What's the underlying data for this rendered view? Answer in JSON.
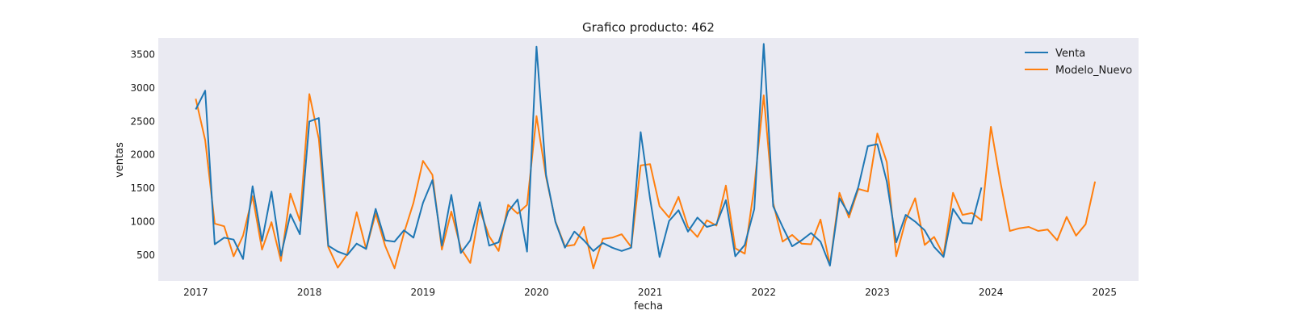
{
  "chart_data": {
    "type": "line",
    "title": "Grafico producto: 462",
    "xlabel": "fecha",
    "ylabel": "ventas",
    "xlim": [
      2016.67,
      2025.3
    ],
    "ylim": [
      110,
      3750
    ],
    "xticks": [
      2017,
      2018,
      2019,
      2020,
      2021,
      2022,
      2023,
      2024,
      2025
    ],
    "yticks": [
      500,
      1000,
      1500,
      2000,
      2500,
      3000,
      3500
    ],
    "grid": false,
    "background": "#eaeaf2",
    "legend_position": "top-right",
    "start_year": 2017,
    "step_months": 1,
    "series": [
      {
        "name": "Venta",
        "color": "#1f77b4",
        "values": [
          2680,
          2960,
          660,
          760,
          730,
          440,
          1530,
          710,
          1450,
          490,
          1110,
          810,
          2500,
          2550,
          640,
          550,
          500,
          670,
          590,
          1190,
          720,
          700,
          870,
          760,
          1280,
          1620,
          640,
          1400,
          530,
          720,
          1290,
          640,
          690,
          1150,
          1330,
          550,
          3620,
          1700,
          990,
          610,
          850,
          720,
          560,
          680,
          610,
          560,
          610,
          2340,
          1340,
          470,
          1010,
          1170,
          850,
          1060,
          920,
          960,
          1320,
          480,
          650,
          1190,
          3660,
          1230,
          920,
          630,
          720,
          830,
          700,
          340,
          1350,
          1110,
          1520,
          2130,
          2160,
          1600,
          690,
          1100,
          1000,
          870,
          620,
          470,
          1190,
          980,
          970,
          1510
        ]
      },
      {
        "name": "Modelo_Nuevo",
        "color": "#ff7f0e",
        "values": [
          2840,
          2220,
          970,
          930,
          480,
          790,
          1380,
          580,
          990,
          410,
          1420,
          1010,
          2910,
          2240,
          620,
          310,
          510,
          1140,
          590,
          1120,
          640,
          300,
          830,
          1280,
          1910,
          1700,
          580,
          1150,
          600,
          380,
          1180,
          780,
          560,
          1250,
          1120,
          1250,
          2580,
          1670,
          1000,
          630,
          650,
          920,
          300,
          740,
          760,
          810,
          620,
          1840,
          1860,
          1230,
          1060,
          1370,
          920,
          770,
          1020,
          940,
          1540,
          600,
          520,
          1520,
          2890,
          1280,
          700,
          800,
          670,
          660,
          1030,
          350,
          1430,
          1060,
          1490,
          1450,
          2320,
          1890,
          480,
          1020,
          1350,
          650,
          770,
          500,
          1430,
          1100,
          1130,
          1020,
          2420,
          1600,
          860,
          900,
          920,
          860,
          880,
          720,
          1070,
          790,
          960,
          1600
        ]
      }
    ]
  }
}
